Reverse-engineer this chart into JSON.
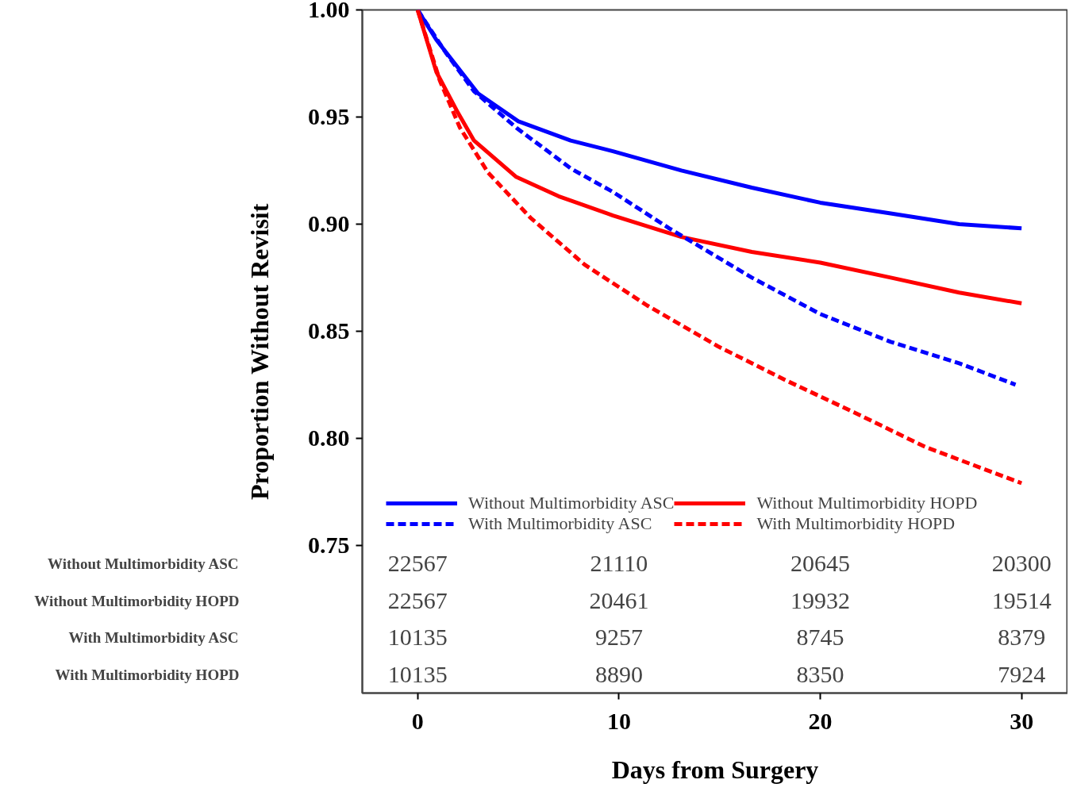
{
  "chart_data": {
    "type": "line",
    "xlabel": "Days from Surgery",
    "ylabel": "Proportion Without Revisit",
    "xlim": [
      -2.75,
      32.3
    ],
    "ylim": [
      0.681,
      1.0
    ],
    "xticks": [
      0,
      10,
      20,
      30
    ],
    "yticks": [
      {
        "value": 0.75,
        "label": "0.75"
      },
      {
        "value": 0.8,
        "label": "0.80"
      },
      {
        "value": 0.85,
        "label": "0.85"
      },
      {
        "value": 0.9,
        "label": "0.90"
      },
      {
        "value": 0.95,
        "label": "0.95"
      },
      {
        "value": 1.0,
        "label": "1.00"
      }
    ],
    "grid": false,
    "legend": "bottom",
    "marker": "none",
    "series": [
      {
        "name": "Without Multimorbidity ASC",
        "color": "#0000ff",
        "line_style": "solid",
        "x": [
          0,
          0.93,
          3,
          5,
          7.6,
          9.7,
          13.1,
          16.6,
          20,
          23.5,
          26.9,
          30
        ],
        "values": [
          1.0,
          0.986,
          0.961,
          0.948,
          0.939,
          0.934,
          0.925,
          0.917,
          0.91,
          0.905,
          0.9,
          0.898
        ]
      },
      {
        "name": "Without Multimorbidity HOPD",
        "color": "#ff0000",
        "line_style": "solid",
        "x": [
          0,
          0.93,
          2,
          2.8,
          4.9,
          7,
          9.7,
          13.1,
          16.6,
          20,
          23.5,
          26.9,
          30
        ],
        "values": [
          1.0,
          0.971,
          0.952,
          0.939,
          0.922,
          0.913,
          0.904,
          0.894,
          0.887,
          0.882,
          0.875,
          0.868,
          0.863
        ]
      },
      {
        "name": "With Multimorbidity ASC",
        "color": "#0000ff",
        "line_style": "dashed",
        "x": [
          0,
          1.4,
          2.8,
          4.9,
          7.6,
          9.7,
          12.5,
          16.6,
          20,
          23.5,
          26.9,
          29.7
        ],
        "values": [
          1.0,
          0.98,
          0.962,
          0.945,
          0.926,
          0.915,
          0.898,
          0.875,
          0.858,
          0.845,
          0.835,
          0.825
        ]
      },
      {
        "name": "With Multimorbidity HOPD",
        "color": "#ff0000",
        "line_style": "dashed",
        "x": [
          0,
          1.1,
          2.1,
          3.5,
          5.6,
          8.3,
          11.4,
          14.9,
          18.3,
          21.7,
          25.2,
          30
        ],
        "values": [
          1.0,
          0.967,
          0.945,
          0.924,
          0.903,
          0.881,
          0.862,
          0.843,
          0.827,
          0.812,
          0.796,
          0.779
        ]
      }
    ],
    "annotations": [
      "Without Multimorbidity ASC",
      "22567",
      "21110",
      "20645",
      "20300",
      "Without Multimorbidity HOPD",
      "22567",
      "20461",
      "19932",
      "19514",
      "With Multimorbidity ASC",
      "10135",
      "9257",
      "8745",
      "8379",
      "With Multimorbidity HOPD",
      "10135",
      "8890",
      "8350",
      "7924"
    ]
  }
}
